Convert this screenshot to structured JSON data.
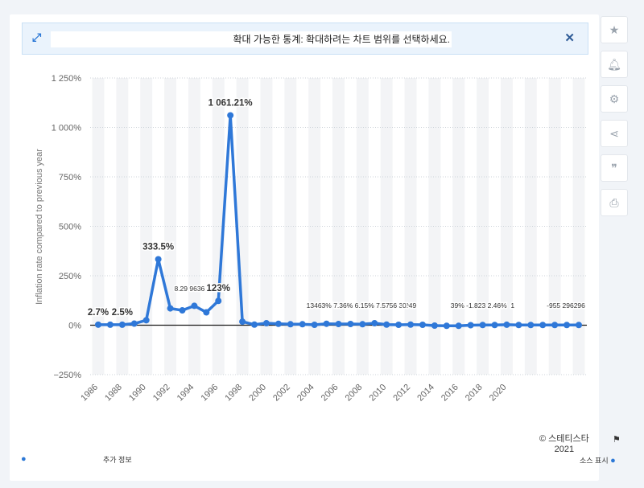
{
  "banner": {
    "message": "확대 가능한 통계: 확대하려는 차트 범위를 선택하세요.",
    "expand_icon": "expand-arrows-icon",
    "close_icon": "close-icon"
  },
  "sidebar": {
    "icons": [
      "star-icon",
      "bell-icon",
      "gear-icon",
      "share-icon",
      "quote-icon",
      "print-icon"
    ]
  },
  "footer": {
    "more_info": "추가 정보",
    "credit_line1": "© 스테티스타",
    "credit_line2": "2021",
    "source": "소스 표시",
    "info_icon": "info-icon",
    "flag_icon": "flag-icon"
  },
  "colors": {
    "line": "#2f78d8",
    "band": "#f3f4f6",
    "grid": "#cdd3d9",
    "zero": "#1b1b1b"
  },
  "chart_data": {
    "type": "line",
    "ylabel": "Inflation rate compared to previous year",
    "ylim": [
      -250,
      1250
    ],
    "yticks": [
      -250,
      0,
      250,
      500,
      750,
      1000,
      1250
    ],
    "ytick_labels": [
      "−250%",
      "0%",
      "250%",
      "500%",
      "750%",
      "1 000%",
      "1 250%"
    ],
    "xtick_labels": [
      "1986",
      "1988",
      "1990",
      "1992",
      "1994",
      "1996",
      "1998",
      "2000",
      "2002",
      "2004",
      "2006",
      "2008",
      "2010",
      "2012",
      "2014",
      "2016",
      "2018",
      "2020"
    ],
    "x": [
      1986,
      1987,
      1988,
      1989,
      1990,
      1991,
      1992,
      1993,
      1994,
      1995,
      1996,
      1997,
      1998,
      1999,
      2000,
      2001,
      2002,
      2003,
      2004,
      2005,
      2006,
      2007,
      2008,
      2009,
      2010,
      2011,
      2012,
      2013,
      2014,
      2015,
      2016,
      2017,
      2018,
      2019,
      2020,
      2021,
      2022,
      2023,
      2024,
      2025,
      2026
    ],
    "values": [
      2.7,
      2.5,
      2.5,
      8,
      25,
      333.5,
      85,
      75,
      98,
      65,
      123,
      1061.21,
      18,
      3,
      10,
      7,
      5,
      5,
      2,
      7.36,
      6,
      6.15,
      5,
      10,
      3,
      2,
      3,
      2,
      -2,
      -3,
      -3,
      0,
      1,
      1,
      2.46,
      1,
      1,
      1,
      1,
      1,
      1
    ],
    "data_labels": [
      {
        "x": 1986,
        "text": "2.7%"
      },
      {
        "x": 1988,
        "text": "2.5%"
      },
      {
        "x": 1991,
        "text": "333.5%"
      },
      {
        "x": 1997,
        "text": "1 061.21%"
      },
      {
        "x": 1996,
        "text": "123%"
      }
    ],
    "small_labels": [
      {
        "x": 1993,
        "text": "8.29 9636"
      },
      {
        "x": 2004,
        "text": "13463% 7.36% 6.15% 7.5756 3-049"
      },
      {
        "x": 2012,
        "text": "0."
      },
      {
        "x": 2016,
        "text": "39% -1.823 2.46%"
      },
      {
        "x": 2021,
        "text": "1"
      },
      {
        "x": 2024,
        "text": "-955 296296"
      }
    ]
  }
}
